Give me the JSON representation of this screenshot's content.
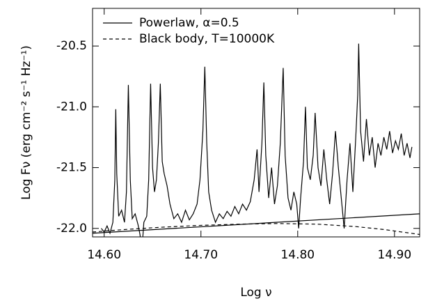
{
  "chart_data": {
    "type": "line",
    "xlabel": "Log ν",
    "ylabel": "Log Fν (erg cm⁻² s⁻¹ Hz⁻¹)",
    "xlim": [
      14.588,
      14.926
    ],
    "ylim": [
      -22.07,
      -20.19
    ],
    "xticks": [
      {
        "value": 14.6,
        "label": "14.60"
      },
      {
        "value": 14.7,
        "label": "14.70"
      },
      {
        "value": 14.8,
        "label": "14.80"
      },
      {
        "value": 14.9,
        "label": "14.90"
      }
    ],
    "yticks": [
      {
        "value": -22,
        "label": "-22.0"
      },
      -21.5,
      {
        "value": -21,
        "label": "-21.0"
      },
      -20.5
    ],
    "legend": "upper-left",
    "series": [
      {
        "name": "Powerlaw, α=0.5",
        "color": "#000000",
        "style": "solid",
        "x": [
          14.597,
          14.6,
          14.603,
          14.606,
          14.609,
          14.611,
          14.612,
          14.613,
          14.615,
          14.618,
          14.621,
          14.623,
          14.625,
          14.627,
          14.629,
          14.632,
          14.635,
          14.637,
          14.639,
          14.641,
          14.644,
          14.646,
          14.648,
          14.65,
          14.652,
          14.654,
          14.656,
          14.658,
          14.66,
          14.662,
          14.665,
          14.668,
          14.672,
          14.676,
          14.68,
          14.684,
          14.688,
          14.692,
          14.696,
          14.699,
          14.702,
          14.704,
          14.706,
          14.708,
          14.711,
          14.715,
          14.719,
          14.723,
          14.727,
          14.731,
          14.735,
          14.739,
          14.743,
          14.747,
          14.751,
          14.755,
          14.758,
          14.76,
          14.763,
          14.765,
          14.767,
          14.77,
          14.773,
          14.776,
          14.779,
          14.782,
          14.785,
          14.787,
          14.79,
          14.793,
          14.796,
          14.799,
          14.801,
          14.803,
          14.806,
          14.808,
          14.81,
          14.813,
          14.816,
          14.818,
          14.821,
          14.824,
          14.827,
          14.83,
          14.833,
          14.836,
          14.839,
          14.842,
          14.845,
          14.848,
          14.851,
          14.854,
          14.857,
          14.86,
          14.862,
          14.863,
          14.865,
          14.868,
          14.871,
          14.874,
          14.877,
          14.88,
          14.883,
          14.886,
          14.889,
          14.892,
          14.895,
          14.898,
          14.901,
          14.904,
          14.907,
          14.91,
          14.913,
          14.916,
          14.918
        ],
        "values": [
          -22.0,
          -22.03,
          -21.98,
          -22.04,
          -21.95,
          -21.6,
          -21.02,
          -21.55,
          -21.9,
          -21.85,
          -21.95,
          -21.7,
          -20.82,
          -21.6,
          -21.92,
          -21.88,
          -21.97,
          -22.05,
          -22.18,
          -21.95,
          -21.9,
          -21.6,
          -20.81,
          -21.5,
          -21.7,
          -21.6,
          -21.3,
          -20.81,
          -21.45,
          -21.55,
          -21.65,
          -21.8,
          -21.92,
          -21.88,
          -21.95,
          -21.85,
          -21.93,
          -21.88,
          -21.8,
          -21.6,
          -21.2,
          -20.67,
          -21.3,
          -21.7,
          -21.85,
          -21.95,
          -21.88,
          -21.92,
          -21.86,
          -21.9,
          -21.82,
          -21.88,
          -21.8,
          -21.85,
          -21.78,
          -21.6,
          -21.35,
          -21.7,
          -21.3,
          -20.8,
          -21.4,
          -21.75,
          -21.5,
          -21.8,
          -21.65,
          -21.3,
          -20.68,
          -21.4,
          -21.75,
          -21.85,
          -21.7,
          -21.8,
          -22.0,
          -21.75,
          -21.45,
          -21.0,
          -21.5,
          -21.6,
          -21.4,
          -21.05,
          -21.5,
          -21.65,
          -21.35,
          -21.6,
          -21.8,
          -21.55,
          -21.2,
          -21.5,
          -21.75,
          -22.0,
          -21.6,
          -21.3,
          -21.7,
          -21.25,
          -20.9,
          -20.48,
          -21.2,
          -21.45,
          -21.1,
          -21.4,
          -21.25,
          -21.5,
          -21.3,
          -21.4,
          -21.25,
          -21.35,
          -21.2,
          -21.38,
          -21.28,
          -21.35,
          -21.22,
          -21.4,
          -21.3,
          -21.42,
          -21.33
        ]
      },
      {
        "name": "Black body, T=10000K",
        "color": "#000000",
        "style": "dashed",
        "x": [
          14.588,
          14.62,
          14.66,
          14.7,
          14.74,
          14.78,
          14.82,
          14.86,
          14.89,
          14.926
        ],
        "values": [
          -22.03,
          -22.01,
          -21.99,
          -21.975,
          -21.965,
          -21.96,
          -21.965,
          -21.985,
          -22.01,
          -22.05
        ]
      },
      {
        "color": "#000000",
        "style": "solid",
        "x": [
          14.588,
          14.926
        ],
        "values": [
          -22.04,
          -21.88
        ]
      }
    ]
  }
}
